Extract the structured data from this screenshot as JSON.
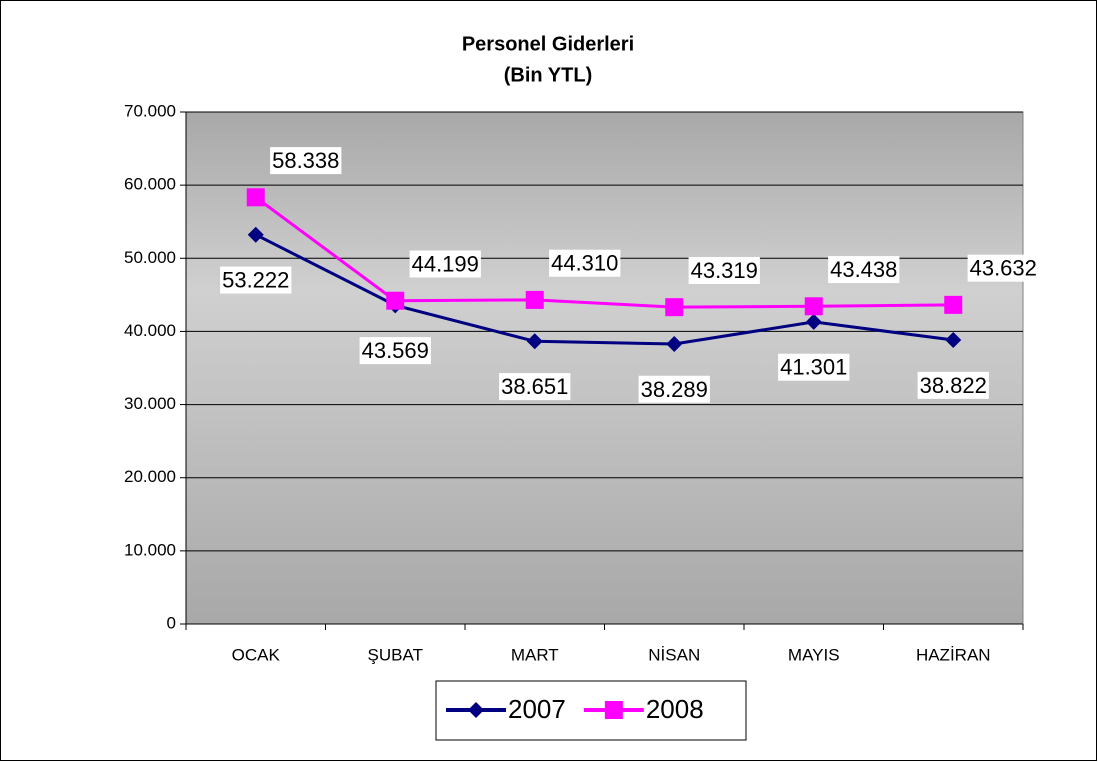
{
  "chart_data": {
    "type": "line",
    "title": "Personel Giderleri",
    "subtitle": "(Bin YTL)",
    "categories": [
      "OCAK",
      "ŞUBAT",
      "MART",
      "NİSAN",
      "MAYIS",
      "HAZİRAN"
    ],
    "series": [
      {
        "name": "2007",
        "color": "#000080",
        "marker": "diamond",
        "values": [
          53222,
          43569,
          38651,
          38289,
          41301,
          38822
        ],
        "value_labels": [
          "53.222",
          "43.569",
          "38.651",
          "38.289",
          "41.301",
          "38.822"
        ]
      },
      {
        "name": "2008",
        "color": "#ff00ff",
        "marker": "square",
        "values": [
          58338,
          44199,
          44310,
          43319,
          43438,
          43632
        ],
        "value_labels": [
          "58.338",
          "44.199",
          "44.310",
          "43.319",
          "43.438",
          "43.632"
        ]
      }
    ],
    "ylim": [
      0,
      70000
    ],
    "yticks": [
      0,
      {
        "value": 10000,
        "label": "10.000"
      },
      {
        "value": 20000,
        "label": "20.000"
      },
      {
        "value": 30000,
        "label": "30.000"
      },
      {
        "value": 40000,
        "label": "40.000"
      },
      {
        "value": 50000,
        "label": "50.000"
      },
      {
        "value": 60000,
        "label": "60.000"
      },
      {
        "value": 70000,
        "label": "70.000"
      }
    ],
    "grid": true,
    "legend": "bottom"
  }
}
